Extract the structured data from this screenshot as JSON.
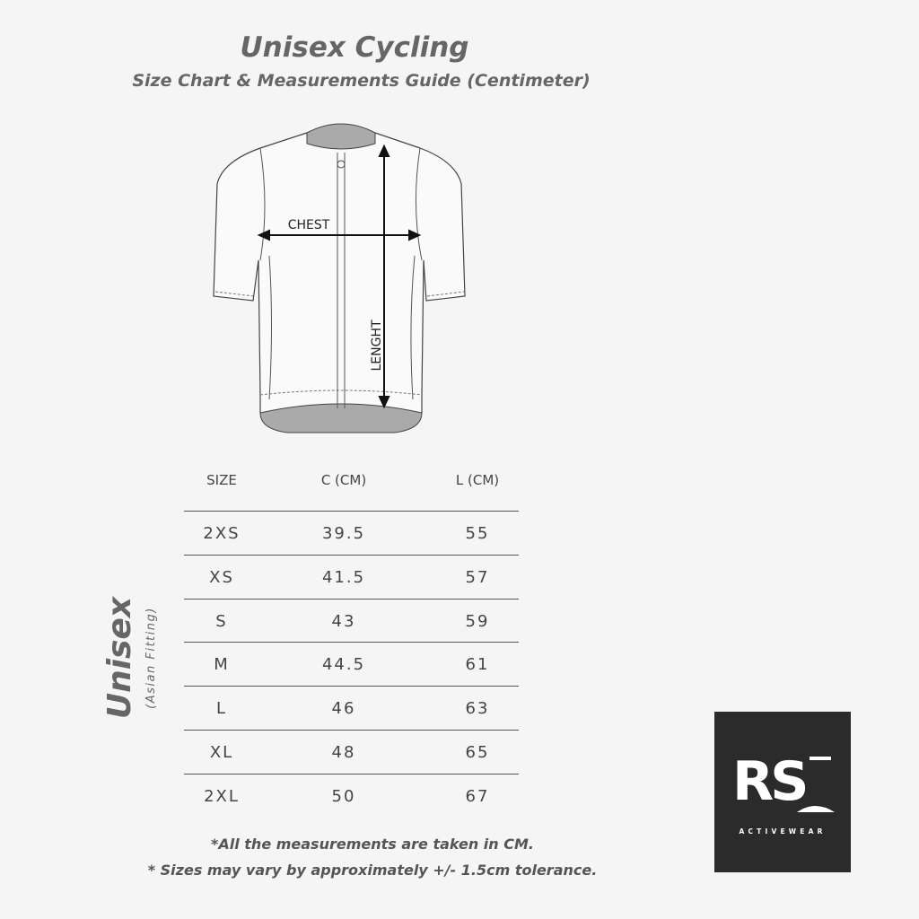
{
  "header": {
    "title": "Unisex Cycling",
    "subtitle": "Size Chart & Measurements Guide (Centimeter)"
  },
  "diagram": {
    "chest_label": "CHEST",
    "length_label": "LENGHT"
  },
  "side_label": {
    "main": "Unisex",
    "sub": "(Asian Fitting)"
  },
  "table": {
    "columns": [
      "SIZE",
      "C (CM)",
      "L (CM)"
    ],
    "rows": [
      [
        "2XS",
        "39.5",
        "55"
      ],
      [
        "XS",
        "41.5",
        "57"
      ],
      [
        "S",
        "43",
        "59"
      ],
      [
        "M",
        "44.5",
        "61"
      ],
      [
        "L",
        "46",
        "63"
      ],
      [
        "XL",
        "48",
        "65"
      ],
      [
        "2XL",
        "50",
        "67"
      ]
    ]
  },
  "notes": [
    "*All the measurements are taken in CM.",
    "* Sizes may vary by approximately +/- 1.5cm tolerance."
  ],
  "logo": {
    "mark": "RS",
    "text": "ACTIVEWEAR",
    "background": "#2b2b2b"
  }
}
